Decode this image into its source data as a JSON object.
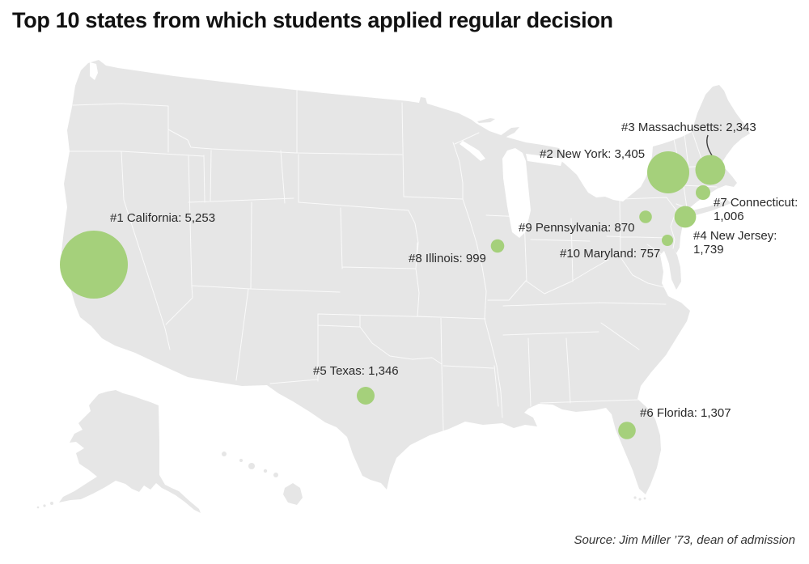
{
  "title": "Top 10 states from which students applied regular decision",
  "source": "Source: Jim Miller ’73, dean of admission",
  "chart_data": {
    "type": "bubble-map",
    "title": "Top 10 states from which students applied regular decision",
    "note": "Bubble location = state; bubble radius proportional to applications",
    "bubble_color": "#a5d07b",
    "map_color": "#e6e6e6",
    "series": [
      {
        "rank": 1,
        "state": "California",
        "value": 5253,
        "label": "#1 California: 5,253"
      },
      {
        "rank": 2,
        "state": "New York",
        "value": 3405,
        "label": "#2 New York: 3,405"
      },
      {
        "rank": 3,
        "state": "Massachusetts",
        "value": 2343,
        "label": "#3 Massachusetts: 2,343"
      },
      {
        "rank": 4,
        "state": "New Jersey",
        "value": 1739,
        "label": "#4 New Jersey:\n1,739"
      },
      {
        "rank": 5,
        "state": "Texas",
        "value": 1346,
        "label": "#5 Texas: 1,346"
      },
      {
        "rank": 6,
        "state": "Florida",
        "value": 1307,
        "label": "#6 Florida: 1,307"
      },
      {
        "rank": 7,
        "state": "Connecticut",
        "value": 1006,
        "label": "#7 Connecticut:\n1,006"
      },
      {
        "rank": 8,
        "state": "Illinois",
        "value": 999,
        "label": "#8 Illinois: 999"
      },
      {
        "rank": 9,
        "state": "Pennsylvania",
        "value": 870,
        "label": "#9 Pennsylvania: 870"
      },
      {
        "rank": 10,
        "state": "Maryland",
        "value": 757,
        "label": "#10 Maryland: 757"
      }
    ]
  }
}
